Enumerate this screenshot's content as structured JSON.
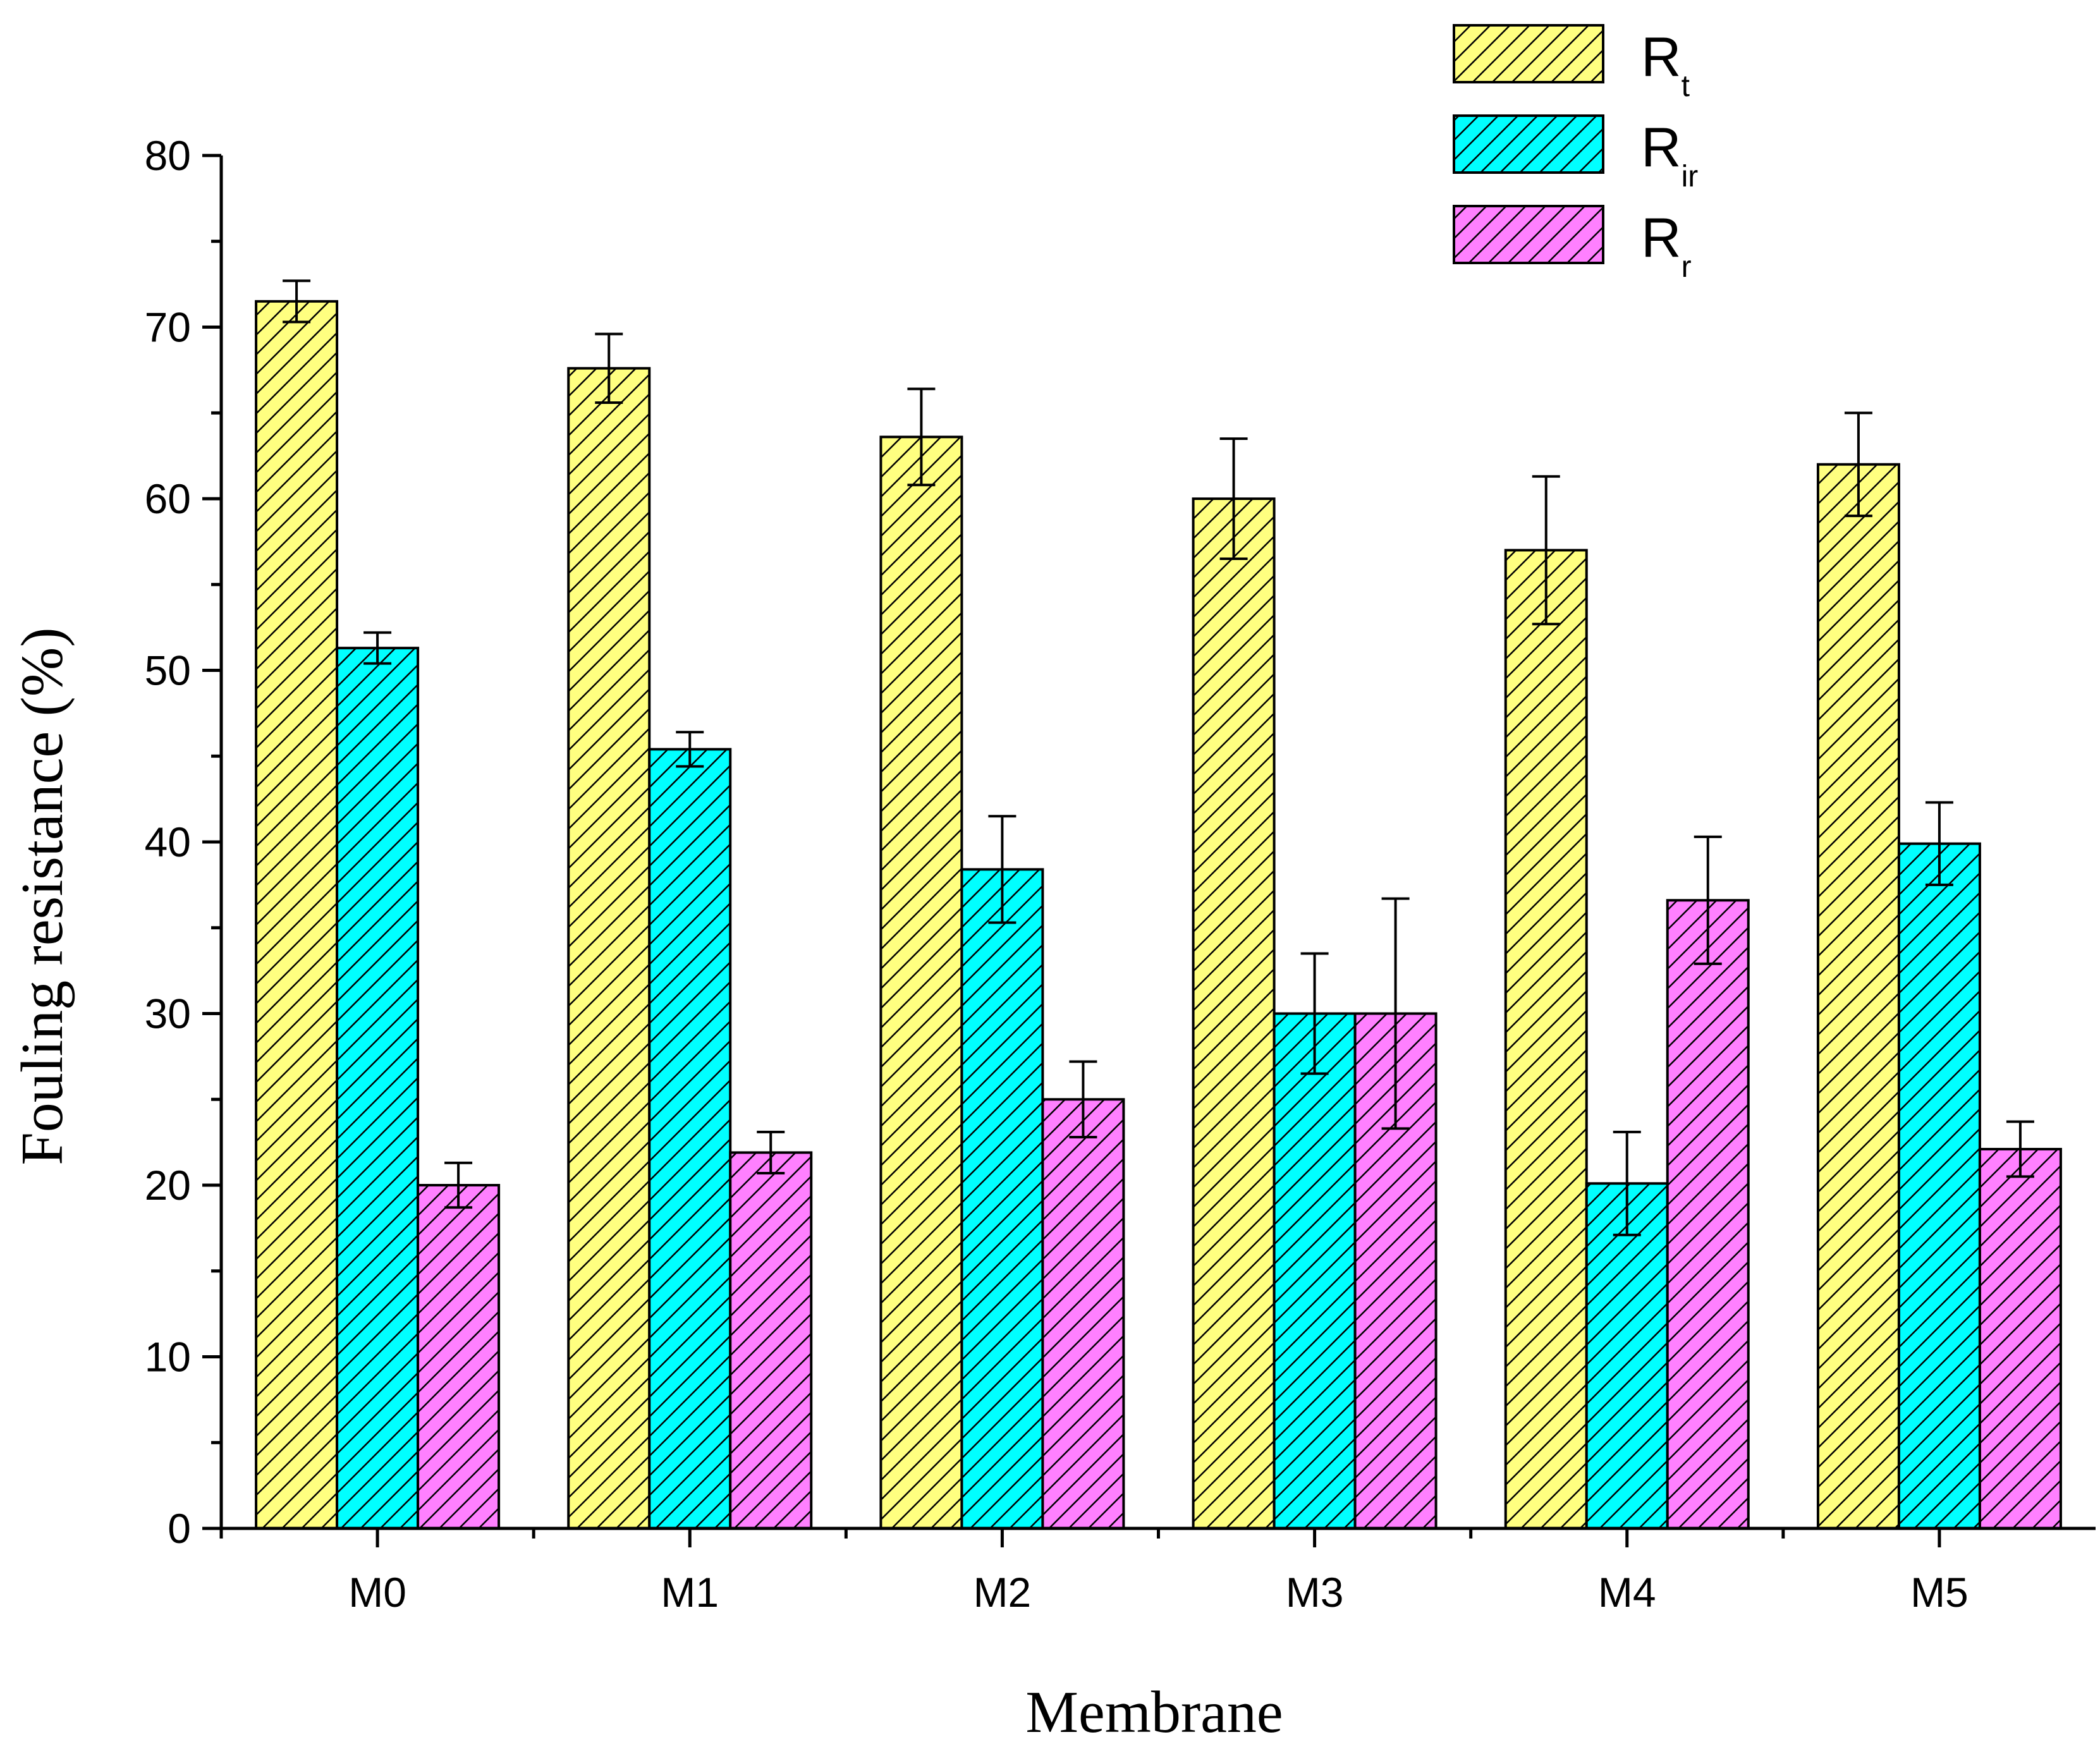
{
  "chart_data": {
    "type": "bar",
    "title": "",
    "xlabel": "Membrane",
    "ylabel": "Fouling resistance (%)",
    "ylim": [
      0,
      80
    ],
    "yticks": [
      0,
      10,
      20,
      30,
      40,
      50,
      60,
      70,
      80
    ],
    "categories": [
      "M0",
      "M1",
      "M2",
      "M3",
      "M4",
      "M5"
    ],
    "legend_position": "top-right",
    "series": [
      {
        "name": "R_t",
        "label_main": "R",
        "label_sub": "t",
        "color": "#ffff80",
        "hatch": "diagonal",
        "values": [
          71.5,
          67.6,
          63.6,
          60.0,
          57.0,
          62.0
        ],
        "errors": [
          1.2,
          2.0,
          2.8,
          3.5,
          4.3,
          3.0
        ]
      },
      {
        "name": "R_ir",
        "label_main": "R",
        "label_sub": "ir",
        "color": "#00ffff",
        "hatch": "diagonal",
        "values": [
          51.3,
          45.4,
          38.4,
          30.0,
          20.1,
          39.9
        ],
        "errors": [
          0.9,
          1.0,
          3.1,
          3.5,
          3.0,
          2.4
        ]
      },
      {
        "name": "R_r",
        "label_main": "R",
        "label_sub": "r",
        "color": "#ff80ff",
        "hatch": "diagonal",
        "values": [
          20.0,
          21.9,
          25.0,
          30.0,
          36.6,
          22.1
        ],
        "errors": [
          1.3,
          1.2,
          2.2,
          6.7,
          3.7,
          1.6
        ]
      }
    ]
  }
}
